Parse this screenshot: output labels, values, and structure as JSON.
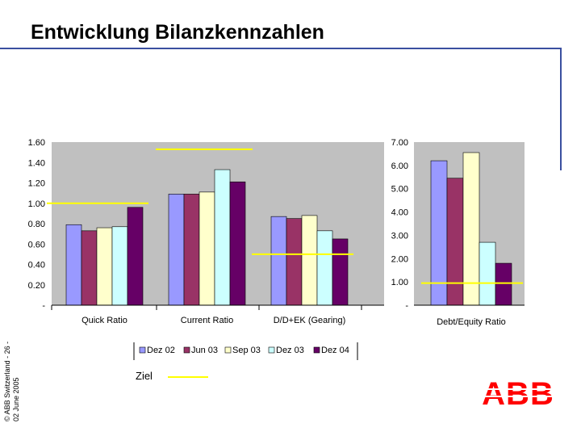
{
  "title": "Entwicklung Bilanzkennzahlen",
  "copyright": [
    "© ABB Switzerland - 26 -",
    "02 June 2005"
  ],
  "logo_text": "ABB",
  "colors": {
    "Dez 02": "#9999ff",
    "Jun 03": "#993366",
    "Sep 03": "#ffffcc",
    "Dez 03": "#ccffff",
    "Dez 04": "#660066",
    "plot_bg": "#c0c0c0",
    "target": "#ffff00",
    "logo": "#ff0000"
  },
  "legend": {
    "target_label": "Ziel"
  },
  "chart_data": [
    {
      "type": "bar",
      "categories": [
        "Quick Ratio",
        "Current Ratio",
        "D/D+EK (Gearing)"
      ],
      "series": [
        {
          "name": "Dez 02",
          "values": [
            0.79,
            1.09,
            0.87
          ]
        },
        {
          "name": "Jun 03",
          "values": [
            0.73,
            1.09,
            0.85
          ]
        },
        {
          "name": "Sep 03",
          "values": [
            0.76,
            1.11,
            0.88
          ]
        },
        {
          "name": "Dez 03",
          "values": [
            0.77,
            1.33,
            0.73
          ]
        },
        {
          "name": "Dez 04",
          "values": [
            0.96,
            1.21,
            0.65
          ]
        }
      ],
      "targets": [
        {
          "category": "Quick Ratio",
          "value": 1.0
        },
        {
          "category": "Current Ratio",
          "value": 1.53
        },
        {
          "category": "D/D+EK (Gearing)",
          "value": 0.5
        }
      ],
      "ylim": [
        0,
        1.6
      ],
      "yticks": [
        "-",
        "0.20",
        "0.40",
        "0.60",
        "0.80",
        "1.00",
        "1.20",
        "1.40",
        "1.60"
      ],
      "grid": false
    },
    {
      "type": "bar",
      "categories": [
        "Debt/Equity Ratio"
      ],
      "series": [
        {
          "name": "Dez 02",
          "values": [
            6.2
          ]
        },
        {
          "name": "Jun 03",
          "values": [
            5.45
          ]
        },
        {
          "name": "Sep 03",
          "values": [
            6.55
          ]
        },
        {
          "name": "Dez 03",
          "values": [
            2.7
          ]
        },
        {
          "name": "Dez 04",
          "values": [
            1.8
          ]
        }
      ],
      "targets": [
        {
          "category": "Debt/Equity Ratio",
          "value": 0.95
        }
      ],
      "ylim": [
        0,
        7
      ],
      "yticks": [
        "-",
        "1.00",
        "2.00",
        "3.00",
        "4.00",
        "5.00",
        "6.00",
        "7.00"
      ],
      "grid": false
    }
  ]
}
